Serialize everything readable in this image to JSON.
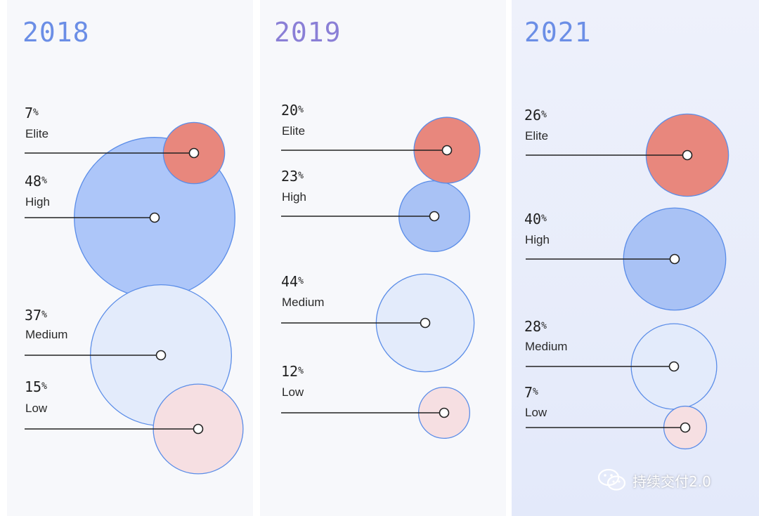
{
  "colors": {
    "elite_fill": "#e8877d",
    "high_fill_2018": "#adc6f9",
    "high_fill": "#a9c2f5",
    "medium_fill": "#e3ebfb",
    "low_fill": "#f6dfe2",
    "circle_stroke": "#5b8de8",
    "year_2018": "#6b8ee6",
    "year_2019": "#8a7fd6",
    "year_2021": "#6b8ee6"
  },
  "chart_data": [
    {
      "type": "bubble",
      "title": "2018",
      "categories": [
        "Elite",
        "High",
        "Medium",
        "Low"
      ],
      "values": [
        7,
        48,
        37,
        15
      ]
    },
    {
      "type": "bubble",
      "title": "2019",
      "categories": [
        "Elite",
        "High",
        "Medium",
        "Low"
      ],
      "values": [
        20,
        23,
        44,
        12
      ]
    },
    {
      "type": "bubble",
      "title": "2021",
      "categories": [
        "Elite",
        "High",
        "Medium",
        "Low"
      ],
      "values": [
        26,
        40,
        28,
        7
      ]
    }
  ],
  "watermark": {
    "icon": "wechat-icon",
    "text": "持续交付2.0"
  }
}
